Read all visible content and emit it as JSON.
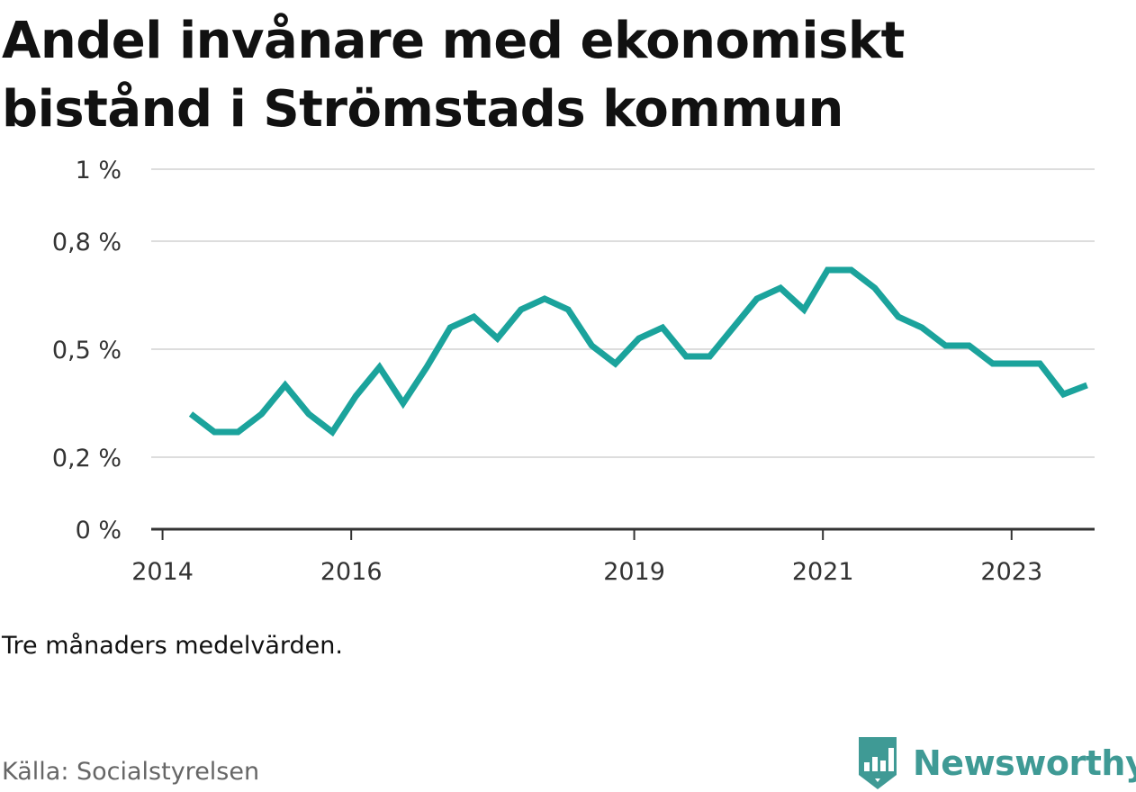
{
  "title": "Andel invånare med ekonomiskt bistånd i Strömstads kommun",
  "note": "Tre månaders medelvärden.",
  "source": "Källa: Socialstyrelsen",
  "brand": {
    "name": "Newsworthy",
    "icon": "newsworthy-logo-icon"
  },
  "colors": {
    "line": "#1ba39c",
    "grid": "#dddddd",
    "axis": "#333333",
    "brand": "#3f9a95"
  },
  "chart_data": {
    "type": "line",
    "title": "Andel invånare med ekonomiskt bistånd i Strömstads kommun",
    "xlabel": "",
    "ylabel": "",
    "y_ticks": [
      0,
      0.2,
      0.5,
      0.8,
      1
    ],
    "y_tick_labels": [
      "0 %",
      "0,2 %",
      "0,5 %",
      "0,8 %",
      "1 %"
    ],
    "x_ticks": [
      2014,
      2016,
      2019,
      2021,
      2023
    ],
    "x_tick_labels": [
      "2014",
      "2016",
      "2019",
      "2021",
      "2023"
    ],
    "xlim": [
      2013.88,
      2023.88
    ],
    "ylim": [
      0,
      1
    ],
    "grid": true,
    "legend": "none",
    "series": [
      {
        "x": [
          2014.3,
          2014.55,
          2014.8,
          2015.05,
          2015.3,
          2015.55,
          2015.8,
          2016.05,
          2016.3,
          2016.55,
          2016.8,
          2017.05,
          2017.3,
          2017.55,
          2017.8,
          2018.05,
          2018.3,
          2018.55,
          2018.8,
          2019.05,
          2019.3,
          2019.55,
          2019.8,
          2020.05,
          2020.3,
          2020.55,
          2020.8,
          2021.05,
          2021.3,
          2021.55,
          2021.8,
          2022.05,
          2022.3,
          2022.55,
          2022.8,
          2023.05,
          2023.3,
          2023.55,
          2023.8
        ],
        "values": [
          0.32,
          0.27,
          0.27,
          0.32,
          0.4,
          0.32,
          0.27,
          0.37,
          0.45,
          0.35,
          0.45,
          0.56,
          0.59,
          0.53,
          0.61,
          0.64,
          0.61,
          0.51,
          0.46,
          0.53,
          0.56,
          0.48,
          0.48,
          0.56,
          0.64,
          0.67,
          0.61,
          0.72,
          0.72,
          0.67,
          0.59,
          0.56,
          0.51,
          0.51,
          0.46,
          0.46,
          0.46,
          0.375,
          0.4
        ]
      }
    ]
  }
}
